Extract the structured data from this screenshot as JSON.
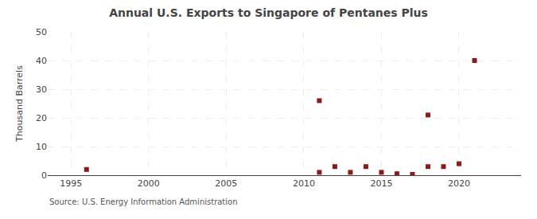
{
  "chart_data": {
    "type": "scatter",
    "title": "Annual U.S. Exports to Singapore of Pentanes Plus",
    "y_label": "Thousand Barrels",
    "annotations": [
      "Source: U.S. Energy Information Administration"
    ],
    "x": [
      1996,
      2011,
      2011,
      2012,
      2013,
      2014,
      2015,
      2016,
      2017,
      2018,
      2018,
      2019,
      2020,
      2021
    ],
    "values": [
      2,
      1,
      26,
      3,
      1,
      3,
      1,
      0.5,
      0.3,
      3,
      21,
      3,
      4,
      40
    ],
    "color": "#8b1a1a",
    "marker": "square",
    "xlim": [
      1993.5,
      2024
    ],
    "xticks": [
      1995,
      2000,
      2005,
      2010,
      2015,
      2020
    ],
    "ylim": [
      0,
      50
    ],
    "yticks": [
      0,
      10,
      20,
      30,
      40,
      50
    ],
    "grid": true
  }
}
